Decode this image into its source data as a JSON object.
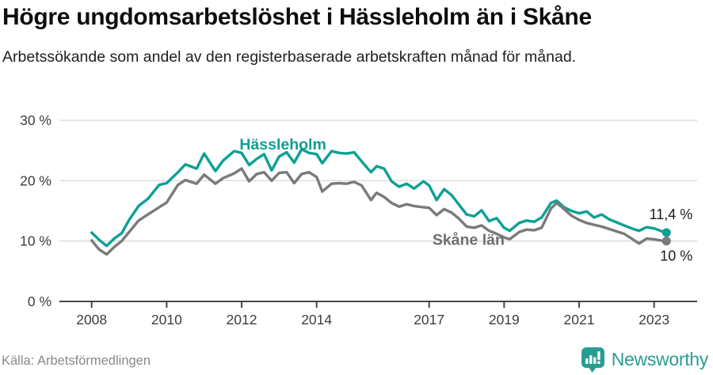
{
  "header": {
    "title": "Högre ungdomsarbetslöshet i Hässleholm än i Skåne",
    "subtitle": "Arbetssökande som andel av den registerbaserade arbetskraften månad för månad."
  },
  "footer": {
    "source": "Källa: Arbetsförmedlingen",
    "brand": "Newsworthy"
  },
  "colors": {
    "hassleholm": "#0ca195",
    "skane": "#7a7a7a",
    "gridline": "#d9d9d9",
    "axis": "#474747",
    "axis_text": "#3d3d3d",
    "end_label_text": "#1a1a1a",
    "logo_teal": "#2a9d92",
    "source_text": "#8a8a8a"
  },
  "chart_data": {
    "type": "line",
    "title": "Högre ungdomsarbetslöshet i Hässleholm än i Skåne",
    "xlabel": "",
    "ylabel": "Arbetssökande som andel av den registerbaserade arbetskraften",
    "xlim": [
      2007.8,
      2024.2
    ],
    "ylim": [
      0,
      30
    ],
    "grid": "horizontal",
    "legend_position": "inline-labels",
    "x_ticks": [
      {
        "value": 2008,
        "label": "2008"
      },
      {
        "value": 2010,
        "label": "2010"
      },
      {
        "value": 2012,
        "label": "2012"
      },
      {
        "value": 2014,
        "label": "2014"
      },
      {
        "value": 2017,
        "label": "2017"
      },
      {
        "value": 2019,
        "label": "2019"
      },
      {
        "value": 2021,
        "label": "2021"
      },
      {
        "value": 2023,
        "label": "2023"
      }
    ],
    "y_ticks": [
      {
        "value": 0,
        "label": "0 %"
      },
      {
        "value": 10,
        "label": "10 %"
      },
      {
        "value": 20,
        "label": "20 %"
      },
      {
        "value": 30,
        "label": "30 %"
      }
    ],
    "x": [
      2008.0,
      2008.2,
      2008.4,
      2008.6,
      2008.8,
      2009.0,
      2009.25,
      2009.5,
      2009.8,
      2010.0,
      2010.3,
      2010.5,
      2010.8,
      2011.0,
      2011.3,
      2011.5,
      2011.8,
      2012.0,
      2012.2,
      2012.4,
      2012.6,
      2012.8,
      2013.0,
      2013.2,
      2013.4,
      2013.6,
      2013.8,
      2014.0,
      2014.15,
      2014.4,
      2014.6,
      2014.8,
      2015.0,
      2015.2,
      2015.45,
      2015.6,
      2015.8,
      2016.0,
      2016.2,
      2016.4,
      2016.6,
      2016.85,
      2017.0,
      2017.2,
      2017.4,
      2017.6,
      2017.8,
      2018.0,
      2018.2,
      2018.4,
      2018.6,
      2018.8,
      2019.0,
      2019.15,
      2019.4,
      2019.6,
      2019.8,
      2020.0,
      2020.25,
      2020.4,
      2020.6,
      2020.8,
      2021.0,
      2021.2,
      2021.4,
      2021.6,
      2021.8,
      2022.0,
      2022.2,
      2022.4,
      2022.6,
      2022.8,
      2023.0,
      2023.17,
      2023.33
    ],
    "series": [
      {
        "name": "Hässleholm",
        "color": "#0ca195",
        "end_label": "11,4 %",
        "end_value": 11.4,
        "label_anchor": {
          "x": 2013.1,
          "y": 25.15
        },
        "values": [
          11.4,
          10.2,
          9.2,
          10.4,
          11.3,
          13.5,
          15.8,
          17.0,
          19.3,
          19.6,
          21.4,
          22.7,
          22.0,
          24.5,
          21.6,
          23.3,
          24.9,
          24.6,
          22.6,
          23.6,
          24.4,
          21.7,
          24.0,
          24.7,
          23.0,
          25.2,
          24.6,
          24.4,
          22.9,
          24.9,
          24.6,
          24.5,
          24.7,
          23.2,
          21.4,
          22.4,
          22.0,
          19.9,
          19.0,
          19.5,
          18.7,
          19.9,
          19.2,
          16.8,
          18.6,
          17.6,
          16.0,
          14.4,
          14.1,
          15.1,
          13.3,
          13.8,
          12.2,
          11.7,
          13.0,
          13.4,
          13.2,
          13.9,
          16.3,
          16.7,
          15.6,
          15.0,
          14.6,
          14.9,
          13.9,
          14.4,
          13.6,
          13.1,
          12.6,
          12.1,
          11.7,
          12.3,
          12.1,
          11.7,
          11.4
        ]
      },
      {
        "name": "Skåne län",
        "color": "#7a7a7a",
        "end_label": "10 %",
        "end_value": 10.0,
        "label_anchor": {
          "x": 2018.05,
          "y": 9.4
        },
        "values": [
          10.1,
          8.6,
          7.8,
          9.0,
          10.0,
          11.5,
          13.4,
          14.4,
          15.6,
          16.4,
          19.3,
          20.1,
          19.5,
          21.0,
          19.5,
          20.4,
          21.2,
          22.0,
          19.9,
          21.1,
          21.4,
          20.0,
          21.3,
          21.4,
          19.6,
          21.1,
          21.4,
          20.6,
          18.2,
          19.5,
          19.6,
          19.5,
          19.8,
          19.2,
          16.8,
          18.0,
          17.3,
          16.3,
          15.7,
          16.1,
          15.8,
          15.6,
          15.5,
          14.3,
          15.3,
          14.7,
          13.7,
          12.4,
          12.2,
          12.6,
          11.7,
          11.2,
          10.6,
          10.3,
          11.5,
          11.9,
          11.8,
          12.2,
          15.4,
          16.3,
          15.3,
          14.2,
          13.5,
          13.0,
          12.7,
          12.4,
          12.0,
          11.6,
          11.2,
          10.4,
          9.6,
          10.4,
          10.3,
          10.1,
          10.0
        ]
      }
    ]
  }
}
